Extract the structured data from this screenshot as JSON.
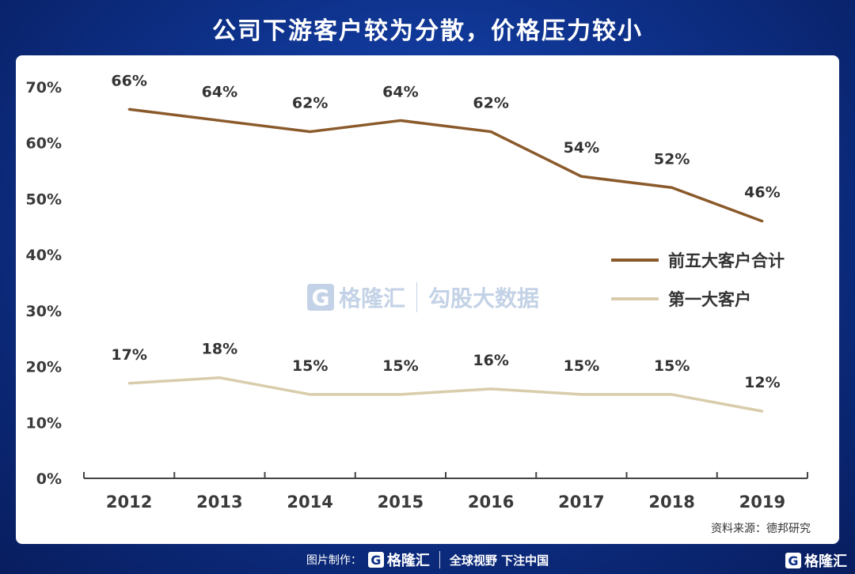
{
  "title": "公司下游客户较为分散，价格压力较小",
  "source": "资料来源：德邦研究",
  "watermark": {
    "logo_letter": "G",
    "brand": "格隆汇",
    "brand2": "勾股大数据"
  },
  "footer": {
    "label": "图片制作：",
    "logo_letter": "G",
    "brand": "格隆汇",
    "slogan": "全球视野 下注中国"
  },
  "corner": {
    "logo_letter": "G",
    "brand": "格隆汇"
  },
  "colors": {
    "top5": "#8a5a2b",
    "top1": "#d8ccab",
    "background": "#0d2f86"
  },
  "chart_data": {
    "type": "line",
    "categories": [
      "2012",
      "2013",
      "2014",
      "2015",
      "2016",
      "2017",
      "2018",
      "2019"
    ],
    "series": [
      {
        "name": "前五大客户合计",
        "values": [
          66,
          64,
          62,
          64,
          62,
          54,
          52,
          46
        ],
        "labels": [
          "66%",
          "64%",
          "62%",
          "64%",
          "62%",
          "54%",
          "52%",
          "46%"
        ]
      },
      {
        "name": "第一大客户",
        "values": [
          17,
          18,
          15,
          15,
          16,
          15,
          15,
          12
        ],
        "labels": [
          "17%",
          "18%",
          "15%",
          "15%",
          "16%",
          "15%",
          "15%",
          "12%"
        ]
      }
    ],
    "yticks": [
      "0%",
      "10%",
      "20%",
      "30%",
      "40%",
      "50%",
      "60%",
      "70%"
    ],
    "ylim": [
      0,
      70
    ],
    "legend_position": "right",
    "grid": false
  }
}
